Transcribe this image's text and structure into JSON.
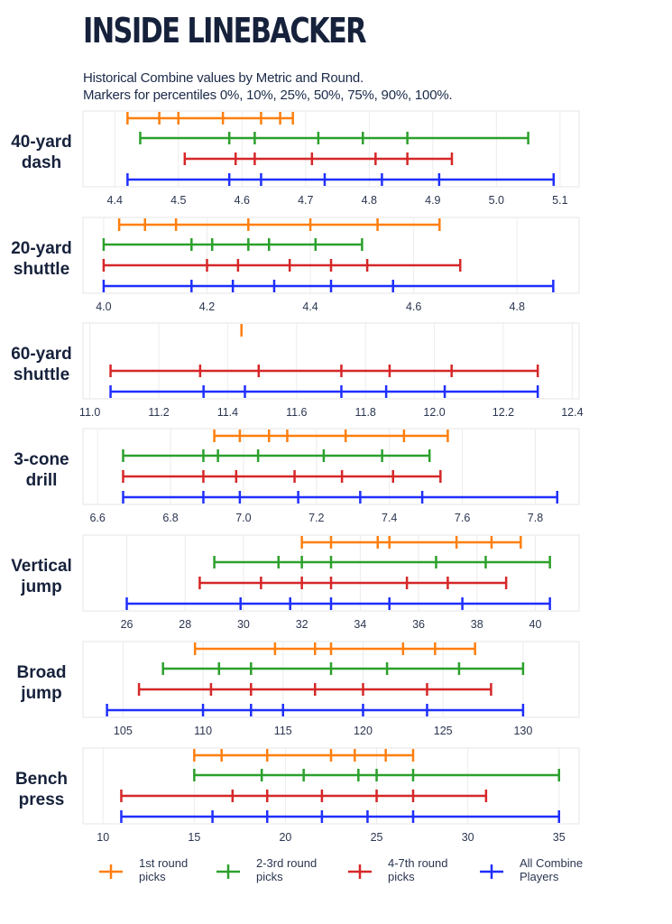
{
  "title": "INSIDE LINEBACKER",
  "subtitle_lines": [
    "Historical Combine values by Metric and Round.",
    "Markers for percentiles 0%, 10%, 25%, 50%, 75%, 90%, 100%."
  ],
  "colors": {
    "round1": "#ff7f0e",
    "round23": "#2ca02c",
    "round47": "#d62728",
    "all": "#1f2fff"
  },
  "chart_data": [
    {
      "type": "percentile-range",
      "metric": "40-yard dash",
      "label_lines": [
        "40-yard",
        "dash"
      ],
      "xlim": [
        4.35,
        5.13
      ],
      "ticks": [
        4.4,
        4.5,
        4.6,
        4.7,
        4.8,
        4.9,
        5.0,
        5.1
      ],
      "tick_labels": [
        "4.4",
        "4.5",
        "4.6",
        "4.7",
        "4.8",
        "4.9",
        "5.0",
        "5.1"
      ],
      "series": [
        {
          "name": "1st round picks",
          "color_key": "round1",
          "values": [
            4.42,
            4.47,
            4.5,
            4.57,
            4.63,
            4.66,
            4.68
          ]
        },
        {
          "name": "2-3rd round picks",
          "color_key": "round23",
          "values": [
            4.44,
            4.58,
            4.62,
            4.72,
            4.79,
            4.86,
            5.05
          ]
        },
        {
          "name": "4-7th round picks",
          "color_key": "round47",
          "values": [
            4.51,
            4.59,
            4.62,
            4.71,
            4.81,
            4.86,
            4.93
          ]
        },
        {
          "name": "All Combine Players",
          "color_key": "all",
          "values": [
            4.42,
            4.58,
            4.63,
            4.73,
            4.82,
            4.91,
            5.09
          ]
        }
      ]
    },
    {
      "type": "percentile-range",
      "metric": "20-yard shuttle",
      "label_lines": [
        "20-yard",
        "shuttle"
      ],
      "xlim": [
        3.96,
        4.92
      ],
      "ticks": [
        4.0,
        4.2,
        4.4,
        4.6,
        4.8
      ],
      "tick_labels": [
        "4.0",
        "4.2",
        "4.4",
        "4.6",
        "4.8"
      ],
      "series": [
        {
          "name": "1st round picks",
          "color_key": "round1",
          "values": [
            4.03,
            4.08,
            4.14,
            4.28,
            4.4,
            4.53,
            4.65
          ]
        },
        {
          "name": "2-3rd round picks",
          "color_key": "round23",
          "values": [
            4.0,
            4.17,
            4.21,
            4.28,
            4.32,
            4.41,
            4.5
          ]
        },
        {
          "name": "4-7th round picks",
          "color_key": "round47",
          "values": [
            4.0,
            4.2,
            4.26,
            4.36,
            4.44,
            4.51,
            4.69
          ]
        },
        {
          "name": "All Combine Players",
          "color_key": "all",
          "values": [
            4.0,
            4.17,
            4.25,
            4.33,
            4.44,
            4.56,
            4.87
          ]
        }
      ]
    },
    {
      "type": "percentile-range",
      "metric": "60-yard shuttle",
      "label_lines": [
        "60-yard",
        "shuttle"
      ],
      "xlim": [
        10.98,
        12.42
      ],
      "ticks": [
        11.0,
        11.2,
        11.4,
        11.6,
        11.8,
        12.0,
        12.2,
        12.4
      ],
      "tick_labels": [
        "11.0",
        "11.2",
        "11.4",
        "11.6",
        "11.8",
        "12.0",
        "12.2",
        "12.4"
      ],
      "series": [
        {
          "name": "1st round picks",
          "color_key": "round1",
          "values": [
            11.44
          ]
        },
        {
          "name": "4-7th round picks",
          "color_key": "round47",
          "values": [
            11.06,
            11.32,
            11.49,
            11.73,
            11.87,
            12.05,
            12.3
          ]
        },
        {
          "name": "All Combine Players",
          "color_key": "all",
          "values": [
            11.06,
            11.33,
            11.45,
            11.73,
            11.86,
            12.03,
            12.3
          ]
        }
      ]
    },
    {
      "type": "percentile-range",
      "metric": "3-cone drill",
      "label_lines": [
        "3-cone",
        "drill"
      ],
      "xlim": [
        6.56,
        7.92
      ],
      "ticks": [
        6.6,
        6.8,
        7.0,
        7.2,
        7.4,
        7.6,
        7.8
      ],
      "tick_labels": [
        "6.6",
        "6.8",
        "7.0",
        "7.2",
        "7.4",
        "7.6",
        "7.8"
      ],
      "series": [
        {
          "name": "1st round picks",
          "color_key": "round1",
          "values": [
            6.92,
            6.99,
            7.07,
            7.12,
            7.28,
            7.44,
            7.56
          ]
        },
        {
          "name": "2-3rd round picks",
          "color_key": "round23",
          "values": [
            6.67,
            6.89,
            6.93,
            7.04,
            7.22,
            7.38,
            7.51
          ]
        },
        {
          "name": "4-7th round picks",
          "color_key": "round47",
          "values": [
            6.67,
            6.89,
            6.98,
            7.14,
            7.27,
            7.41,
            7.54
          ]
        },
        {
          "name": "All Combine Players",
          "color_key": "all",
          "values": [
            6.67,
            6.89,
            6.99,
            7.15,
            7.32,
            7.49,
            7.86
          ]
        }
      ]
    },
    {
      "type": "percentile-range",
      "metric": "Vertical jump",
      "label_lines": [
        "Vertical",
        "jump"
      ],
      "xlim": [
        24.5,
        41.5
      ],
      "ticks": [
        26,
        28,
        30,
        32,
        34,
        36,
        38,
        40
      ],
      "tick_labels": [
        "26",
        "28",
        "30",
        "32",
        "34",
        "36",
        "38",
        "40"
      ],
      "series": [
        {
          "name": "1st round picks",
          "color_key": "round1",
          "values": [
            32.0,
            33.0,
            34.6,
            35.0,
            37.3,
            38.5,
            39.5
          ]
        },
        {
          "name": "2-3rd round picks",
          "color_key": "round23",
          "values": [
            29.0,
            31.2,
            32.0,
            33.0,
            36.6,
            38.3,
            40.5
          ]
        },
        {
          "name": "4-7th round picks",
          "color_key": "round47",
          "values": [
            28.5,
            30.6,
            32.0,
            33.0,
            35.6,
            37.0,
            39.0
          ]
        },
        {
          "name": "All Combine Players",
          "color_key": "all",
          "values": [
            26.0,
            29.9,
            31.6,
            33.0,
            35.0,
            37.5,
            40.5
          ]
        }
      ]
    },
    {
      "type": "percentile-range",
      "metric": "Broad jump",
      "label_lines": [
        "Broad",
        "jump"
      ],
      "xlim": [
        102.5,
        133.5
      ],
      "ticks": [
        105,
        110,
        115,
        120,
        125,
        130
      ],
      "tick_labels": [
        "105",
        "110",
        "115",
        "120",
        "125",
        "130"
      ],
      "series": [
        {
          "name": "1st round picks",
          "color_key": "round1",
          "values": [
            109.5,
            114.5,
            117.0,
            118.0,
            122.5,
            124.5,
            127.0
          ]
        },
        {
          "name": "2-3rd round picks",
          "color_key": "round23",
          "values": [
            107.5,
            111.0,
            113.0,
            118.0,
            121.5,
            126.0,
            130.0
          ]
        },
        {
          "name": "4-7th round picks",
          "color_key": "round47",
          "values": [
            106.0,
            110.5,
            113.0,
            117.0,
            120.0,
            124.0,
            128.0
          ]
        },
        {
          "name": "All Combine Players",
          "color_key": "all",
          "values": [
            104.0,
            110.0,
            113.0,
            115.0,
            120.0,
            124.0,
            130.0
          ]
        }
      ]
    },
    {
      "type": "percentile-range",
      "metric": "Bench press",
      "label_lines": [
        "Bench",
        "press"
      ],
      "xlim": [
        8.9,
        36.1
      ],
      "ticks": [
        10,
        15,
        20,
        25,
        30,
        35
      ],
      "tick_labels": [
        "10",
        "15",
        "20",
        "25",
        "30",
        "35"
      ],
      "series": [
        {
          "name": "1st round picks",
          "color_key": "round1",
          "values": [
            15.0,
            16.5,
            19.0,
            22.5,
            23.8,
            25.5,
            27.0
          ]
        },
        {
          "name": "2-3rd round picks",
          "color_key": "round23",
          "values": [
            15.0,
            18.7,
            21.0,
            24.0,
            25.0,
            27.0,
            35.0
          ]
        },
        {
          "name": "4-7th round picks",
          "color_key": "round47",
          "values": [
            11.0,
            17.1,
            19.0,
            22.0,
            25.0,
            27.0,
            31.0
          ]
        },
        {
          "name": "All Combine Players",
          "color_key": "all",
          "values": [
            11.0,
            16.0,
            19.0,
            22.0,
            24.5,
            27.0,
            35.0
          ]
        }
      ]
    }
  ],
  "legend": [
    {
      "label_lines": [
        "1st round",
        "picks"
      ],
      "color_key": "round1"
    },
    {
      "label_lines": [
        "2-3rd round",
        "picks"
      ],
      "color_key": "round23"
    },
    {
      "label_lines": [
        "4-7th round",
        "picks"
      ],
      "color_key": "round47"
    },
    {
      "label_lines": [
        "All Combine",
        "Players"
      ],
      "color_key": "all"
    }
  ]
}
